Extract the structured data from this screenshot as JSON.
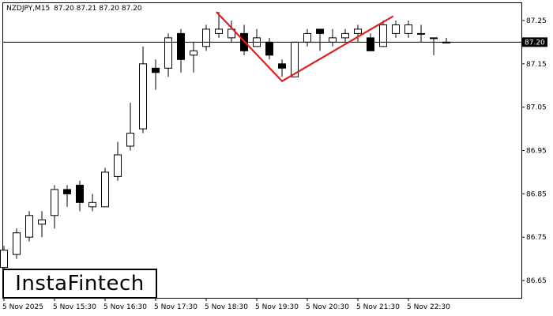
{
  "header": {
    "symbol_timeframe": "NZDJPY,M15",
    "ohlc": "87.20 87.21 87.20 87.20"
  },
  "logo": {
    "text": "InstaFintech"
  },
  "colors": {
    "bull_body": "#ffffff",
    "bear_body": "#000000",
    "candle_outline": "#000000",
    "pattern_line": "#e0201c",
    "price_line": "#000000",
    "price_tag_bg": "#000000",
    "price_tag_text": "#ffffff"
  },
  "chart_data": {
    "type": "candlestick",
    "title": "NZDJPY,M15",
    "grid": false,
    "ylim": [
      86.61,
      87.29
    ],
    "y_ticks": [
      "87.25",
      "87.15",
      "87.05",
      "86.95",
      "86.85",
      "86.75",
      "86.65"
    ],
    "current_price": "87.20",
    "x_ticks": [
      "5 Nov 2025",
      "5 Nov 15:30",
      "5 Nov 16:30",
      "5 Nov 17:30",
      "5 Nov 18:30",
      "5 Nov 19:30",
      "5 Nov 20:30",
      "5 Nov 21:30",
      "5 Nov 22:30"
    ],
    "candles": [
      {
        "o": 86.68,
        "h": 86.73,
        "l": 86.65,
        "c": 86.72
      },
      {
        "o": 86.71,
        "h": 86.77,
        "l": 86.7,
        "c": 86.76
      },
      {
        "o": 86.75,
        "h": 86.81,
        "l": 86.74,
        "c": 86.8
      },
      {
        "o": 86.78,
        "h": 86.81,
        "l": 86.75,
        "c": 86.79
      },
      {
        "o": 86.8,
        "h": 86.87,
        "l": 86.77,
        "c": 86.86
      },
      {
        "o": 86.86,
        "h": 86.87,
        "l": 86.82,
        "c": 86.85
      },
      {
        "o": 86.87,
        "h": 86.88,
        "l": 86.81,
        "c": 86.83
      },
      {
        "o": 86.82,
        "h": 86.85,
        "l": 86.81,
        "c": 86.83
      },
      {
        "o": 86.82,
        "h": 86.91,
        "l": 86.82,
        "c": 86.9
      },
      {
        "o": 86.89,
        "h": 86.97,
        "l": 86.88,
        "c": 86.94
      },
      {
        "o": 86.96,
        "h": 87.06,
        "l": 86.95,
        "c": 86.99
      },
      {
        "o": 87.0,
        "h": 87.19,
        "l": 86.99,
        "c": 87.15
      },
      {
        "o": 87.14,
        "h": 87.16,
        "l": 87.09,
        "c": 87.13
      },
      {
        "o": 87.14,
        "h": 87.22,
        "l": 87.12,
        "c": 87.21
      },
      {
        "o": 87.22,
        "h": 87.23,
        "l": 87.13,
        "c": 87.16
      },
      {
        "o": 87.17,
        "h": 87.2,
        "l": 87.13,
        "c": 87.18
      },
      {
        "o": 87.19,
        "h": 87.24,
        "l": 87.18,
        "c": 87.23
      },
      {
        "o": 87.22,
        "h": 87.27,
        "l": 87.21,
        "c": 87.23
      },
      {
        "o": 87.21,
        "h": 87.25,
        "l": 87.2,
        "c": 87.23
      },
      {
        "o": 87.22,
        "h": 87.24,
        "l": 87.17,
        "c": 87.18
      },
      {
        "o": 87.19,
        "h": 87.23,
        "l": 87.19,
        "c": 87.21
      },
      {
        "o": 87.2,
        "h": 87.21,
        "l": 87.16,
        "c": 87.17
      },
      {
        "o": 87.15,
        "h": 87.16,
        "l": 87.12,
        "c": 87.14
      },
      {
        "o": 87.12,
        "h": 87.2,
        "l": 87.12,
        "c": 87.2
      },
      {
        "o": 87.2,
        "h": 87.23,
        "l": 87.19,
        "c": 87.22
      },
      {
        "o": 87.23,
        "h": 87.23,
        "l": 87.18,
        "c": 87.22
      },
      {
        "o": 87.2,
        "h": 87.23,
        "l": 87.19,
        "c": 87.21
      },
      {
        "o": 87.21,
        "h": 87.23,
        "l": 87.2,
        "c": 87.22
      },
      {
        "o": 87.22,
        "h": 87.24,
        "l": 87.2,
        "c": 87.23
      },
      {
        "o": 87.21,
        "h": 87.22,
        "l": 87.18,
        "c": 87.18
      },
      {
        "o": 87.19,
        "h": 87.25,
        "l": 87.19,
        "c": 87.24
      },
      {
        "o": 87.22,
        "h": 87.25,
        "l": 87.21,
        "c": 87.24
      },
      {
        "o": 87.22,
        "h": 87.25,
        "l": 87.21,
        "c": 87.24
      },
      {
        "o": 87.22,
        "h": 87.24,
        "l": 87.2,
        "c": 87.22
      },
      {
        "o": 87.21,
        "h": 87.21,
        "l": 87.17,
        "c": 87.21
      },
      {
        "o": 87.2,
        "h": 87.21,
        "l": 87.2,
        "c": 87.2
      }
    ],
    "pattern": {
      "name": "double top",
      "points": [
        {
          "candle": 16.8,
          "price": 87.27
        },
        {
          "candle": 22.0,
          "price": 87.11
        },
        {
          "candle": 30.8,
          "price": 87.26
        }
      ]
    }
  }
}
